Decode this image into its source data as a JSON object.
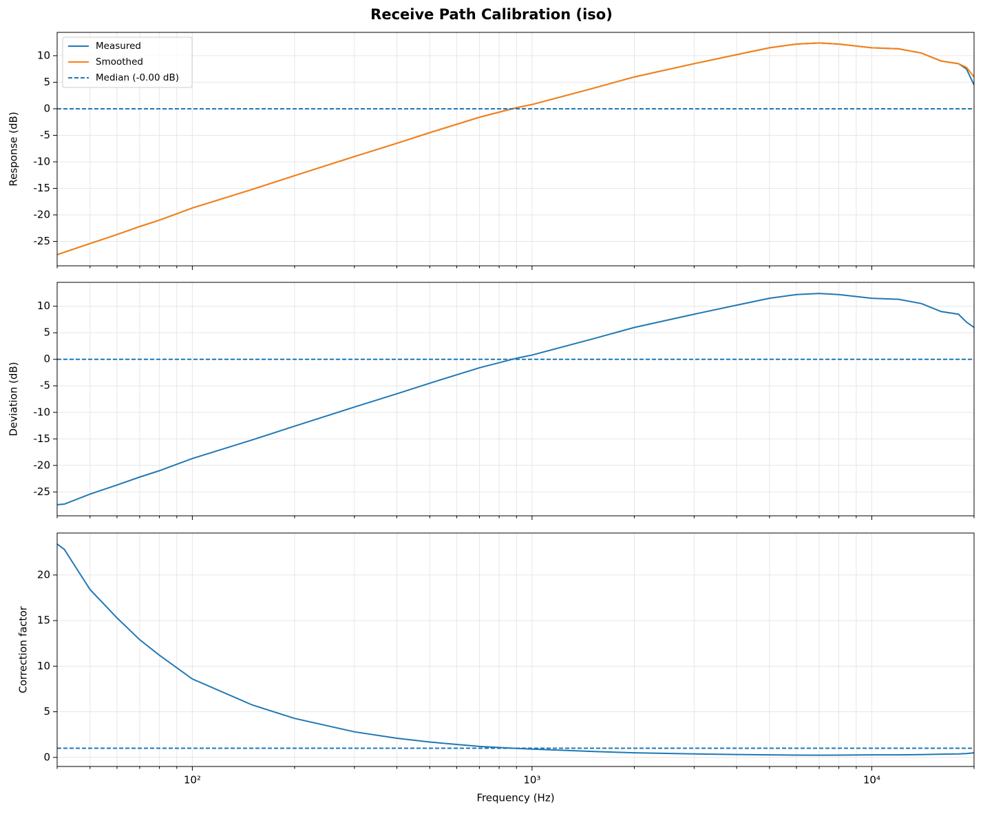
{
  "title": "Receive Path Calibration (iso)",
  "chart_data": [
    {
      "type": "line",
      "ylabel": "Response (dB)",
      "log_x": true,
      "grid": true,
      "legend": "upper left",
      "show_xtick_labels": false,
      "x": [
        40,
        50,
        60,
        70,
        80,
        100,
        150,
        200,
        300,
        400,
        500,
        700,
        900,
        1000,
        1500,
        2000,
        3000,
        4000,
        5000,
        6000,
        7000,
        8000,
        10000,
        12000,
        14000,
        16000,
        18000,
        19000,
        20000
      ],
      "series": [
        {
          "name": "Measured",
          "color": "#1f77b4",
          "values": [
            -27.5,
            -25.4,
            -23.7,
            -22.2,
            -21,
            -18.7,
            -15.2,
            -12.6,
            -9,
            -6.5,
            -4.5,
            -1.6,
            0.2,
            0.8,
            3.8,
            6,
            8.5,
            10.2,
            11.5,
            12.2,
            12.4,
            12.2,
            11.5,
            11.3,
            10.5,
            9,
            8.5,
            7.5,
            4.5
          ]
        },
        {
          "name": "Smoothed",
          "color": "#ff7f0e",
          "values": [
            -27.5,
            -25.4,
            -23.7,
            -22.2,
            -21,
            -18.7,
            -15.2,
            -12.6,
            -9,
            -6.5,
            -4.5,
            -1.6,
            0.2,
            0.8,
            3.8,
            6,
            8.5,
            10.2,
            11.5,
            12.2,
            12.4,
            12.2,
            11.5,
            11.3,
            10.5,
            9,
            8.5,
            7.8,
            6
          ]
        }
      ],
      "hlines": [
        {
          "name": "Median (-0.00 dB)",
          "value": 0,
          "color": "#1f77b4"
        }
      ],
      "xlim": [
        40,
        20000
      ],
      "xticks": [
        {
          "value": 100,
          "label": "10²"
        },
        {
          "value": 1000,
          "label": "10³"
        },
        {
          "value": 10000,
          "label": "10⁴"
        }
      ],
      "xminorticks": [
        40,
        50,
        60,
        70,
        80,
        90,
        200,
        300,
        400,
        500,
        600,
        700,
        800,
        900,
        2000,
        3000,
        4000,
        5000,
        6000,
        7000,
        8000,
        9000,
        20000
      ],
      "ylim": [
        -29.6,
        14.4
      ],
      "yticks": [
        -25,
        -20,
        -15,
        -10,
        -5,
        0,
        5,
        10
      ]
    },
    {
      "type": "line",
      "ylabel": "Deviation (dB)",
      "log_x": true,
      "grid": true,
      "show_xtick_labels": false,
      "x": [
        40,
        42,
        50,
        60,
        70,
        80,
        100,
        150,
        200,
        300,
        400,
        500,
        700,
        900,
        1000,
        1500,
        2000,
        3000,
        4000,
        5000,
        6000,
        7000,
        8000,
        10000,
        12000,
        14000,
        16000,
        18000,
        19000,
        20000
      ],
      "series": [
        {
          "name": "Deviation",
          "color": "#1f77b4",
          "values": [
            -27.4,
            -27.3,
            -25.4,
            -23.7,
            -22.2,
            -21,
            -18.7,
            -15.2,
            -12.6,
            -9,
            -6.5,
            -4.5,
            -1.6,
            0.2,
            0.8,
            3.8,
            6,
            8.5,
            10.2,
            11.5,
            12.2,
            12.4,
            12.2,
            11.5,
            11.3,
            10.5,
            9,
            8.5,
            7,
            6
          ]
        }
      ],
      "hlines": [
        {
          "value": 0,
          "color": "#1f77b4"
        }
      ],
      "xlim": [
        40,
        20000
      ],
      "xticks": [
        {
          "value": 100,
          "label": "10²"
        },
        {
          "value": 1000,
          "label": "10³"
        },
        {
          "value": 10000,
          "label": "10⁴"
        }
      ],
      "xminorticks": [
        40,
        50,
        60,
        70,
        80,
        90,
        200,
        300,
        400,
        500,
        600,
        700,
        800,
        900,
        2000,
        3000,
        4000,
        5000,
        6000,
        7000,
        8000,
        9000,
        20000
      ],
      "ylim": [
        -29.5,
        14.5
      ],
      "yticks": [
        -25,
        -20,
        -15,
        -10,
        -5,
        0,
        5,
        10
      ]
    },
    {
      "type": "line",
      "ylabel": "Correction factor",
      "xlabel": "Frequency (Hz)",
      "log_x": true,
      "grid": true,
      "show_xtick_labels": true,
      "x": [
        40,
        42,
        50,
        60,
        70,
        80,
        100,
        150,
        200,
        300,
        400,
        500,
        700,
        900,
        1000,
        1500,
        2000,
        3000,
        4000,
        5000,
        6000,
        7000,
        8000,
        10000,
        12000,
        14000,
        16000,
        18000,
        19000,
        20000
      ],
      "series": [
        {
          "name": "Correction factor",
          "color": "#1f77b4",
          "values": [
            23.4,
            22.8,
            18.4,
            15.3,
            12.9,
            11.2,
            8.6,
            5.75,
            4.27,
            2.8,
            2.1,
            1.68,
            1.2,
            0.98,
            0.91,
            0.65,
            0.5,
            0.38,
            0.31,
            0.27,
            0.25,
            0.24,
            0.25,
            0.27,
            0.27,
            0.3,
            0.35,
            0.38,
            0.42,
            0.5
          ]
        }
      ],
      "hlines": [
        {
          "value": 1,
          "color": "#1f77b4"
        }
      ],
      "xlim": [
        40,
        20000
      ],
      "xticks": [
        {
          "value": 100,
          "label": "10²"
        },
        {
          "value": 1000,
          "label": "10³"
        },
        {
          "value": 10000,
          "label": "10⁴"
        }
      ],
      "xminorticks": [
        40,
        50,
        60,
        70,
        80,
        90,
        200,
        300,
        400,
        500,
        600,
        700,
        800,
        900,
        2000,
        3000,
        4000,
        5000,
        6000,
        7000,
        8000,
        9000,
        20000
      ],
      "ylim": [
        -1.0,
        24.6
      ],
      "yticks": [
        0,
        5,
        10,
        15,
        20
      ]
    }
  ]
}
